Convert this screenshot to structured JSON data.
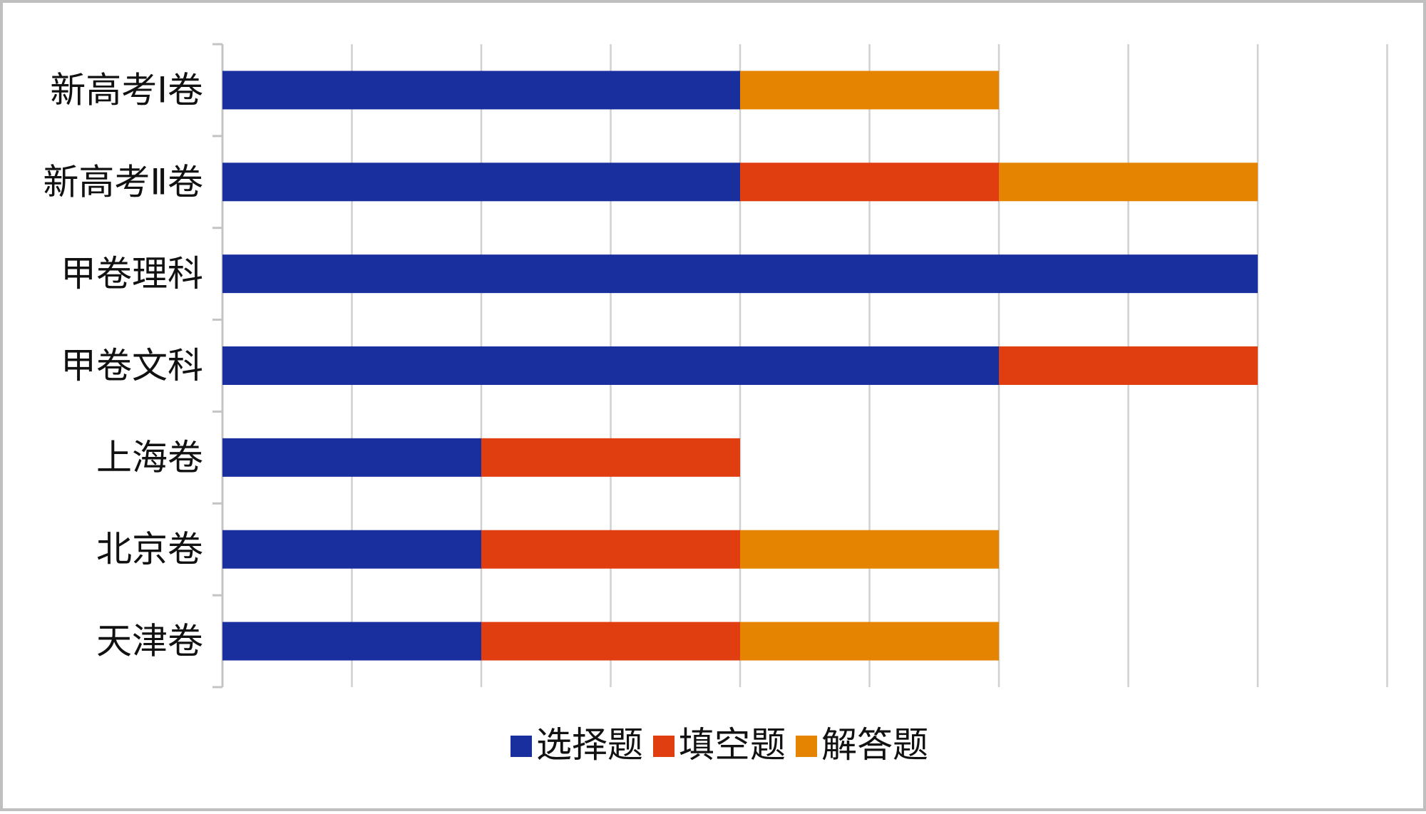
{
  "chart_data": {
    "type": "bar",
    "orientation": "horizontal",
    "stacked": true,
    "categories": [
      "新高考Ⅰ卷",
      "新高考Ⅱ卷",
      "甲卷理科",
      "甲卷文科",
      "上海卷",
      "北京卷",
      "天津卷"
    ],
    "series": [
      {
        "name": "选择题",
        "color": "#1a2f9e",
        "values": [
          4,
          4,
          8,
          6,
          2,
          2,
          2
        ]
      },
      {
        "name": "填空题",
        "color": "#e03e10",
        "values": [
          0,
          2,
          0,
          2,
          2,
          2,
          2
        ]
      },
      {
        "name": "解答题",
        "color": "#e58400",
        "values": [
          2,
          2,
          0,
          0,
          0,
          2,
          2
        ]
      }
    ],
    "xlim": [
      0,
      9
    ],
    "x_gridlines_every": 1,
    "grid": true,
    "legend_position": "bottom",
    "title": "",
    "xlabel": "",
    "ylabel": ""
  }
}
